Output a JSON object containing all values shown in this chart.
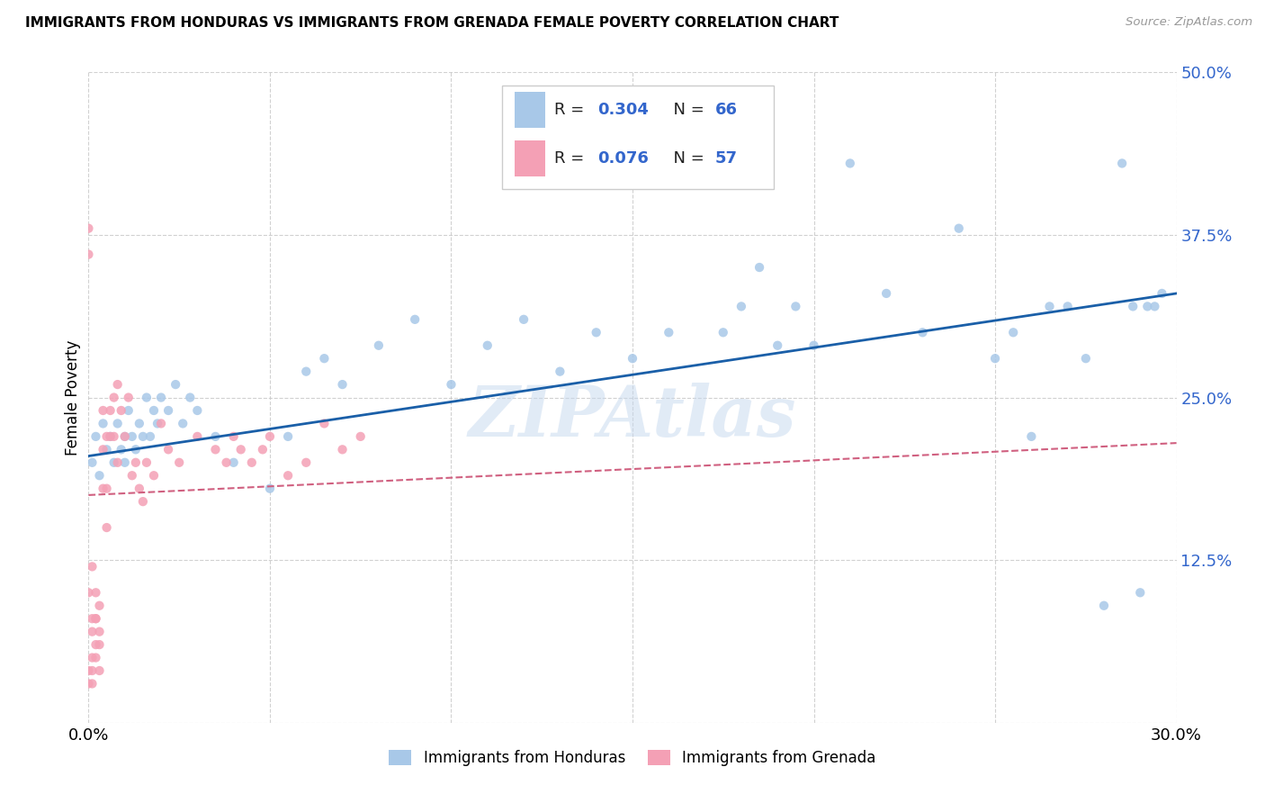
{
  "title": "IMMIGRANTS FROM HONDURAS VS IMMIGRANTS FROM GRENADA FEMALE POVERTY CORRELATION CHART",
  "source": "Source: ZipAtlas.com",
  "ylabel": "Female Poverty",
  "x_min": 0.0,
  "x_max": 0.3,
  "y_min": 0.0,
  "y_max": 0.5,
  "x_ticks": [
    0.0,
    0.05,
    0.1,
    0.15,
    0.2,
    0.25,
    0.3
  ],
  "y_ticks": [
    0.0,
    0.125,
    0.25,
    0.375,
    0.5
  ],
  "y_tick_labels": [
    "",
    "12.5%",
    "25.0%",
    "37.5%",
    "50.0%"
  ],
  "color_honduras": "#a8c8e8",
  "color_grenada": "#f4a0b5",
  "trendline_honduras": "#1a5fa8",
  "trendline_grenada": "#d06080",
  "R_honduras": 0.304,
  "N_honduras": 66,
  "R_grenada": 0.076,
  "N_grenada": 57,
  "watermark": "ZIPAtlas",
  "legend_label_honduras": "Immigrants from Honduras",
  "legend_label_grenada": "Immigrants from Grenada",
  "honduras_x": [
    0.001,
    0.002,
    0.003,
    0.004,
    0.005,
    0.006,
    0.007,
    0.008,
    0.009,
    0.01,
    0.01,
    0.011,
    0.012,
    0.013,
    0.014,
    0.015,
    0.016,
    0.017,
    0.018,
    0.019,
    0.02,
    0.022,
    0.024,
    0.026,
    0.028,
    0.03,
    0.035,
    0.04,
    0.05,
    0.055,
    0.06,
    0.065,
    0.07,
    0.08,
    0.09,
    0.1,
    0.11,
    0.12,
    0.13,
    0.14,
    0.15,
    0.16,
    0.17,
    0.175,
    0.18,
    0.185,
    0.19,
    0.195,
    0.2,
    0.21,
    0.22,
    0.23,
    0.24,
    0.25,
    0.255,
    0.26,
    0.265,
    0.27,
    0.275,
    0.28,
    0.285,
    0.288,
    0.29,
    0.292,
    0.294,
    0.296
  ],
  "honduras_y": [
    0.2,
    0.22,
    0.19,
    0.23,
    0.21,
    0.22,
    0.2,
    0.23,
    0.21,
    0.22,
    0.2,
    0.24,
    0.22,
    0.21,
    0.23,
    0.22,
    0.25,
    0.22,
    0.24,
    0.23,
    0.25,
    0.24,
    0.26,
    0.23,
    0.25,
    0.24,
    0.22,
    0.2,
    0.18,
    0.22,
    0.27,
    0.28,
    0.26,
    0.29,
    0.31,
    0.26,
    0.29,
    0.31,
    0.27,
    0.3,
    0.28,
    0.3,
    0.42,
    0.3,
    0.32,
    0.35,
    0.29,
    0.32,
    0.29,
    0.43,
    0.33,
    0.3,
    0.38,
    0.28,
    0.3,
    0.22,
    0.32,
    0.32,
    0.28,
    0.09,
    0.43,
    0.32,
    0.1,
    0.32,
    0.32,
    0.33
  ],
  "grenada_x": [
    0.0,
    0.0,
    0.0,
    0.0,
    0.0,
    0.001,
    0.001,
    0.001,
    0.001,
    0.001,
    0.001,
    0.002,
    0.002,
    0.002,
    0.002,
    0.002,
    0.003,
    0.003,
    0.003,
    0.003,
    0.004,
    0.004,
    0.004,
    0.005,
    0.005,
    0.005,
    0.006,
    0.006,
    0.007,
    0.007,
    0.008,
    0.008,
    0.009,
    0.01,
    0.011,
    0.012,
    0.013,
    0.014,
    0.015,
    0.016,
    0.018,
    0.02,
    0.022,
    0.025,
    0.03,
    0.035,
    0.038,
    0.04,
    0.042,
    0.045,
    0.048,
    0.05,
    0.055,
    0.06,
    0.065,
    0.07,
    0.075
  ],
  "grenada_y": [
    0.38,
    0.36,
    0.1,
    0.04,
    0.03,
    0.08,
    0.05,
    0.12,
    0.04,
    0.07,
    0.03,
    0.06,
    0.08,
    0.05,
    0.1,
    0.08,
    0.06,
    0.09,
    0.04,
    0.07,
    0.18,
    0.21,
    0.24,
    0.22,
    0.18,
    0.15,
    0.22,
    0.24,
    0.25,
    0.22,
    0.26,
    0.2,
    0.24,
    0.22,
    0.25,
    0.19,
    0.2,
    0.18,
    0.17,
    0.2,
    0.19,
    0.23,
    0.21,
    0.2,
    0.22,
    0.21,
    0.2,
    0.22,
    0.21,
    0.2,
    0.21,
    0.22,
    0.19,
    0.2,
    0.23,
    0.21,
    0.22
  ],
  "honduras_trend_x": [
    0.0,
    0.3
  ],
  "honduras_trend_y": [
    0.205,
    0.33
  ],
  "grenada_trend_x": [
    0.0,
    0.3
  ],
  "grenada_trend_y": [
    0.175,
    0.215
  ]
}
